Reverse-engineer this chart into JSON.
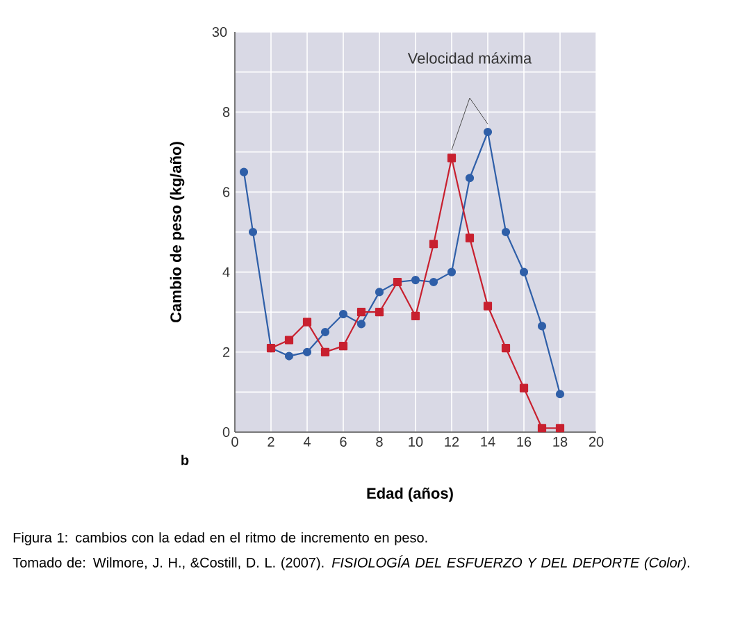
{
  "chart_data": {
    "type": "line",
    "xlabel": "Edad (años)",
    "ylabel": "Cambio de peso (kg/año)",
    "xlim": [
      0,
      20
    ],
    "xticks": [
      0,
      2,
      4,
      6,
      8,
      10,
      12,
      14,
      16,
      18,
      20
    ],
    "ylim": [
      0,
      10
    ],
    "yticks": [
      0,
      {
        "value": 1,
        "label": null
      },
      2,
      {
        "value": 3,
        "label": null
      },
      4,
      {
        "value": 5,
        "label": null
      },
      6,
      {
        "value": 7,
        "label": null
      },
      8,
      {
        "value": 9,
        "label": null
      },
      {
        "value": 10,
        "label": null
      }
    ],
    "grid": true,
    "series": [
      {
        "color": "#2f5fa8",
        "marker": "circle",
        "x": [
          0.5,
          1,
          2,
          3,
          4,
          5,
          6,
          7,
          8,
          9,
          10,
          11,
          12,
          13,
          14,
          15,
          16,
          17,
          18
        ],
        "values": [
          6.5,
          5.0,
          2.1,
          1.9,
          2.0,
          2.5,
          2.95,
          2.7,
          3.5,
          3.75,
          3.8,
          3.75,
          4.0,
          6.35,
          7.5,
          5.0,
          4.0,
          2.65,
          0.95
        ]
      },
      {
        "color": "#c8202f",
        "marker": "square",
        "x": [
          2,
          3,
          4,
          5,
          6,
          7,
          8,
          9,
          10,
          11,
          12,
          13,
          14,
          15,
          16,
          17,
          18
        ],
        "values": [
          2.1,
          2.3,
          2.75,
          2.0,
          2.15,
          3.0,
          3.0,
          3.75,
          2.9,
          4.7,
          6.85,
          4.85,
          3.15,
          2.1,
          1.1,
          0.1,
          0.1
        ]
      }
    ],
    "annotations": [
      "Velocidad máxima",
      "b",
      "Figura 1: cambios con la edad en el ritmo de incremento en peso.",
      "Tomado de: Wilmore, J. H., &Costill, D. L. (2007). *FISIOLOGÍA DEL ESFUERZO Y DEL DEPORTE (Color)*.",
      "30"
    ]
  }
}
